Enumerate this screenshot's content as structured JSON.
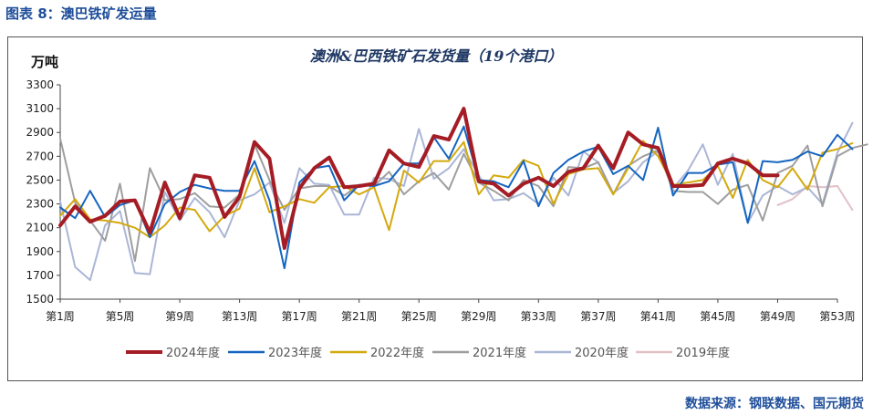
{
  "figure_title": "图表 8：澳巴铁矿发运量",
  "source": "数据来源：钢联数据、国元期货",
  "chart_data": {
    "type": "line",
    "title": "澳洲&巴西铁矿石发货量（19个港口）",
    "ylabel": "万吨",
    "ylim": [
      1500,
      3300
    ],
    "yticks": [
      1500,
      1700,
      1900,
      2100,
      2300,
      2500,
      2700,
      2900,
      3100,
      3300
    ],
    "xlim": [
      1,
      53
    ],
    "xtick_labels": [
      "第1周",
      "第5周",
      "第9周",
      "第13周",
      "第17周",
      "第21周",
      "第25周",
      "第29周",
      "第33周",
      "第37周",
      "第41周",
      "第45周",
      "第49周",
      "第53周"
    ],
    "grid": false,
    "legend": "bottom",
    "series": [
      {
        "name": "2024年度",
        "color": "#a51c24",
        "width": 4,
        "values": [
          2120,
          2280,
          2150,
          2200,
          2320,
          2330,
          2060,
          2480,
          2180,
          2540,
          2520,
          2190,
          2360,
          2820,
          2680,
          1930,
          2430,
          2600,
          2690,
          2440,
          2450,
          2470,
          2750,
          2640,
          2610,
          2870,
          2840,
          3100,
          2490,
          2470,
          2370,
          2470,
          2520,
          2450,
          2570,
          2600,
          2790,
          2600,
          2900,
          2800,
          2770,
          2450,
          2450,
          2460,
          2640,
          2680,
          2640,
          2540,
          2540
        ]
      },
      {
        "name": "2023年度",
        "color": "#1565c0",
        "width": 2,
        "values": [
          2270,
          2180,
          2410,
          2190,
          2290,
          2330,
          2020,
          2300,
          2400,
          2460,
          2430,
          2410,
          2410,
          2660,
          2330,
          1760,
          2480,
          2600,
          2620,
          2330,
          2460,
          2450,
          2490,
          2640,
          2640,
          2860,
          2680,
          2950,
          2500,
          2490,
          2440,
          2660,
          2280,
          2560,
          2670,
          2740,
          2780,
          2550,
          2620,
          2500,
          2940,
          2370,
          2560,
          2560,
          2630,
          2650,
          2140,
          2660,
          2650,
          2670,
          2740,
          2700,
          2880,
          2760
        ]
      },
      {
        "name": "2022年度",
        "color": "#d4a90c",
        "width": 2,
        "values": [
          2200,
          2340,
          2170,
          2160,
          2140,
          2100,
          2020,
          2120,
          2270,
          2250,
          2070,
          2200,
          2260,
          2600,
          2230,
          2280,
          2340,
          2310,
          2440,
          2450,
          2380,
          2440,
          2080,
          2580,
          2480,
          2660,
          2660,
          2820,
          2380,
          2540,
          2520,
          2670,
          2620,
          2300,
          2550,
          2590,
          2600,
          2380,
          2600,
          2830,
          2700,
          2460,
          2480,
          2500,
          2620,
          2350,
          2670,
          2500,
          2440,
          2600,
          2420,
          2730,
          2760,
          2810
        ]
      },
      {
        "name": "2021年度",
        "color": "#9e9e9e",
        "width": 2,
        "values": [
          2850,
          2310,
          2160,
          1990,
          2470,
          1820,
          2600,
          2330,
          2340,
          2390,
          2280,
          2270,
          2380,
          2800,
          2500,
          2250,
          2430,
          2450,
          2450,
          2370,
          2460,
          2450,
          2570,
          2380,
          2490,
          2560,
          2420,
          2720,
          2480,
          2410,
          2330,
          2500,
          2450,
          2280,
          2610,
          2600,
          2650,
          2380,
          2620,
          2700,
          2750,
          2410,
          2400,
          2400,
          2300,
          2420,
          2460,
          2160,
          2560,
          2620,
          2790,
          2280,
          2700,
          2770,
          2800
        ]
      },
      {
        "name": "2020年度",
        "color": "#aab6d6",
        "width": 2,
        "values": [
          2320,
          1770,
          1660,
          2120,
          2240,
          1720,
          1710,
          2400,
          2160,
          2350,
          2230,
          2020,
          2330,
          2380,
          2480,
          2140,
          2600,
          2470,
          2460,
          2210,
          2210,
          2520,
          2510,
          2450,
          2930,
          2510,
          2600,
          2760,
          2540,
          2330,
          2340,
          2390,
          2300,
          2520,
          2370,
          2740,
          2650,
          2390,
          2490,
          2650,
          2740,
          2430,
          2580,
          2800,
          2460,
          2720,
          2140,
          2370,
          2450,
          2380,
          2440,
          2300,
          2730,
          2980
        ]
      },
      {
        "name": "2019年度",
        "color": "#e1c0c6",
        "width": 2,
        "x_start": 49,
        "values": [
          2290,
          2340,
          2450,
          2440,
          2450,
          2250
        ]
      }
    ]
  }
}
